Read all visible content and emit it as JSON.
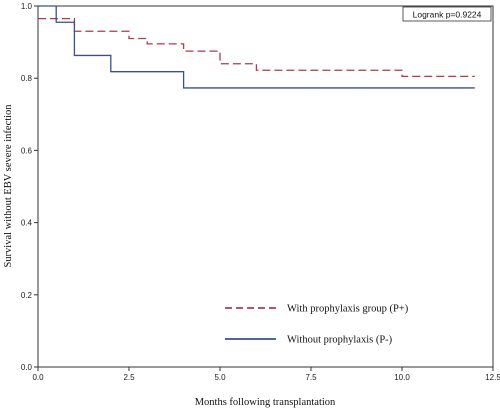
{
  "chart_data": {
    "type": "line",
    "xlabel": "Months following transplantation",
    "ylabel": "Survival without EBV severe infection",
    "xlim": [
      0,
      12.5
    ],
    "ylim": [
      0,
      1.0
    ],
    "x_ticks": [
      "0.0",
      "2.5",
      "5.0",
      "7.5",
      "10.0",
      "12.5"
    ],
    "x_tick_values": [
      0,
      2.5,
      5,
      7.5,
      10,
      12.5
    ],
    "y_ticks": [
      "0.0",
      "0.2",
      "0.4",
      "0.6",
      "0.8",
      "1.0"
    ],
    "y_tick_values": [
      0,
      0.2,
      0.4,
      0.6,
      0.8,
      1.0
    ],
    "grid": false,
    "annotation": "Logrank p=0.9224",
    "legend_position": "lower-right",
    "series": [
      {
        "name": "With prophylaxis group (P+)",
        "style": "dashed",
        "color": "#b03a4a",
        "x": [
          0,
          1,
          2.5,
          3,
          4,
          5,
          6,
          10,
          12
        ],
        "y": [
          0.965,
          0.93,
          0.91,
          0.895,
          0.875,
          0.84,
          0.822,
          0.805,
          0.805
        ]
      },
      {
        "name": "Without prophylaxis (P-)",
        "style": "solid",
        "color": "#3b4f8f",
        "x": [
          0,
          0.5,
          1,
          2,
          4,
          12
        ],
        "y": [
          1.0,
          0.955,
          0.863,
          0.818,
          0.773,
          0.773
        ]
      }
    ]
  }
}
